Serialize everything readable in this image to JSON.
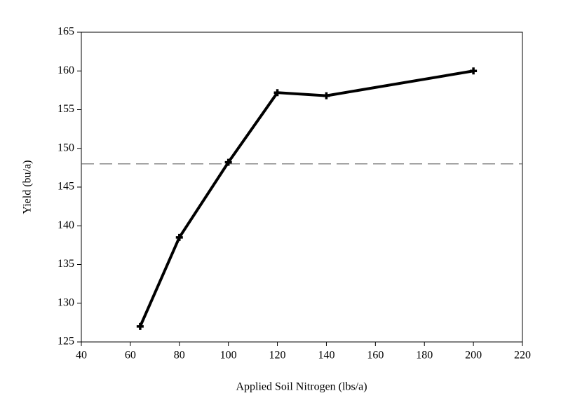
{
  "chart_data": {
    "type": "line",
    "x_label": "Applied Soil Nitrogen (lbs/a)",
    "y_label": "Yield (bu/a)",
    "x": [
      64,
      80,
      100,
      120,
      140,
      200
    ],
    "values": [
      127,
      138.5,
      148.2,
      157.2,
      156.8,
      160
    ],
    "color": "#000000",
    "reference_line": 148,
    "xlim": [
      40,
      220
    ],
    "xticks": [
      40,
      60,
      80,
      100,
      120,
      140,
      160,
      180,
      200,
      220
    ],
    "ylim": [
      125,
      165
    ],
    "yticks": [
      125,
      130,
      135,
      140,
      145,
      150,
      155,
      160,
      165
    ]
  }
}
